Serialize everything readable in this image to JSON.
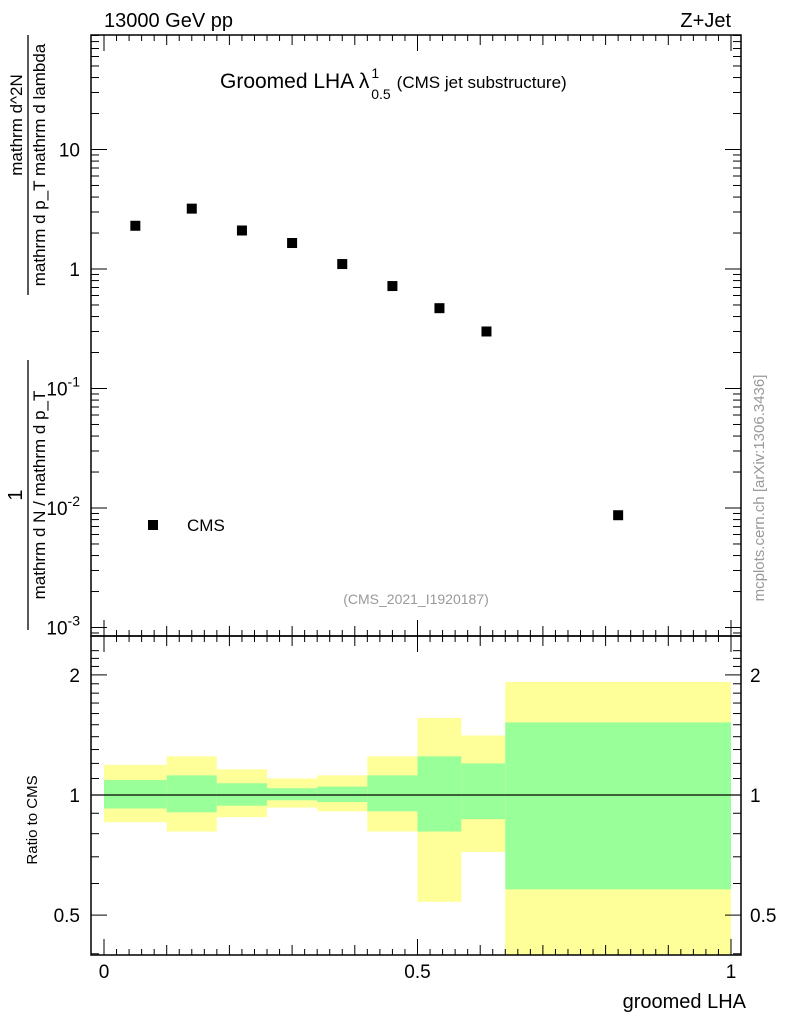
{
  "header": {
    "energy_label": "13000 GeV pp",
    "process_label": "Z+Jet"
  },
  "watermark": {
    "site_label": "mcplots.cern.ch [arXiv:1306.3436]",
    "analysis_label": "(CMS_2021_I1920187)"
  },
  "legend": {
    "entries": [
      {
        "label": "CMS",
        "marker": "square"
      }
    ]
  },
  "colors": {
    "band_inner": "#99ff99",
    "band_outer": "#ffff99",
    "marker": "#000000",
    "axis": "#000000",
    "watermark": "#999999"
  },
  "chart_data": [
    {
      "type": "scatter",
      "title": "Groomed LHA λ",
      "title_superscript": "1",
      "title_subscript": "0.5",
      "title_note": "(CMS jet substructure)",
      "ylabel": {
        "numerator": "1",
        "denominator": "mathrm d N / mathrm d p_T",
        "fraction_numerator": "mathrm d^2N",
        "fraction_denominator": "mathrm d p_T mathrm d lambda"
      },
      "y_scale": "log",
      "ylim": [
        0.001,
        100
      ],
      "y_ticks": [
        {
          "base": "10",
          "exp": "-3",
          "value": 0.001
        },
        {
          "base": "10",
          "exp": "-2",
          "value": 0.01
        },
        {
          "base": "10",
          "exp": "-1",
          "value": 0.1
        },
        {
          "base": "1",
          "exp": "",
          "value": 1
        },
        {
          "base": "10",
          "exp": "",
          "value": 10
        }
      ],
      "xlim": [
        0,
        1
      ],
      "grid": false,
      "legend_position": "bottom-left",
      "series": [
        {
          "name": "CMS",
          "x": [
            0.05,
            0.14,
            0.22,
            0.3,
            0.38,
            0.46,
            0.535,
            0.61,
            0.82
          ],
          "y": [
            2.3,
            3.2,
            2.1,
            1.65,
            1.1,
            0.72,
            0.47,
            0.3,
            0.0087
          ]
        }
      ]
    },
    {
      "type": "area",
      "ylabel": "Ratio to CMS",
      "xlabel": "groomed LHA",
      "y_scale": "log",
      "ylim": [
        0.37,
        2.4
      ],
      "xlim": [
        0,
        1
      ],
      "y_ticks": [
        "0.5",
        "1",
        "2"
      ],
      "y_tick_values": [
        0.5,
        1,
        2
      ],
      "x_ticks": [
        "0",
        "0.5",
        "1"
      ],
      "x_tick_values": [
        0,
        0.5,
        1
      ],
      "reference_line": 1,
      "bins": [
        {
          "x0": 0.0,
          "x1": 0.1,
          "inner": [
            0.925,
            1.09
          ],
          "outer": [
            0.855,
            1.19
          ]
        },
        {
          "x0": 0.1,
          "x1": 0.18,
          "inner": [
            0.905,
            1.12
          ],
          "outer": [
            0.81,
            1.25
          ]
        },
        {
          "x0": 0.18,
          "x1": 0.26,
          "inner": [
            0.94,
            1.07
          ],
          "outer": [
            0.88,
            1.16
          ]
        },
        {
          "x0": 0.26,
          "x1": 0.34,
          "inner": [
            0.97,
            1.04
          ],
          "outer": [
            0.93,
            1.1
          ]
        },
        {
          "x0": 0.34,
          "x1": 0.42,
          "inner": [
            0.96,
            1.05
          ],
          "outer": [
            0.91,
            1.12
          ]
        },
        {
          "x0": 0.42,
          "x1": 0.5,
          "inner": [
            0.91,
            1.12
          ],
          "outer": [
            0.81,
            1.25
          ]
        },
        {
          "x0": 0.5,
          "x1": 0.57,
          "inner": [
            0.81,
            1.25
          ],
          "outer": [
            0.54,
            1.56
          ]
        },
        {
          "x0": 0.57,
          "x1": 0.64,
          "inner": [
            0.87,
            1.2
          ],
          "outer": [
            0.72,
            1.41
          ]
        },
        {
          "x0": 0.64,
          "x1": 1.0,
          "inner": [
            0.58,
            1.52
          ],
          "outer": [
            0.37,
            1.92
          ]
        }
      ]
    }
  ]
}
